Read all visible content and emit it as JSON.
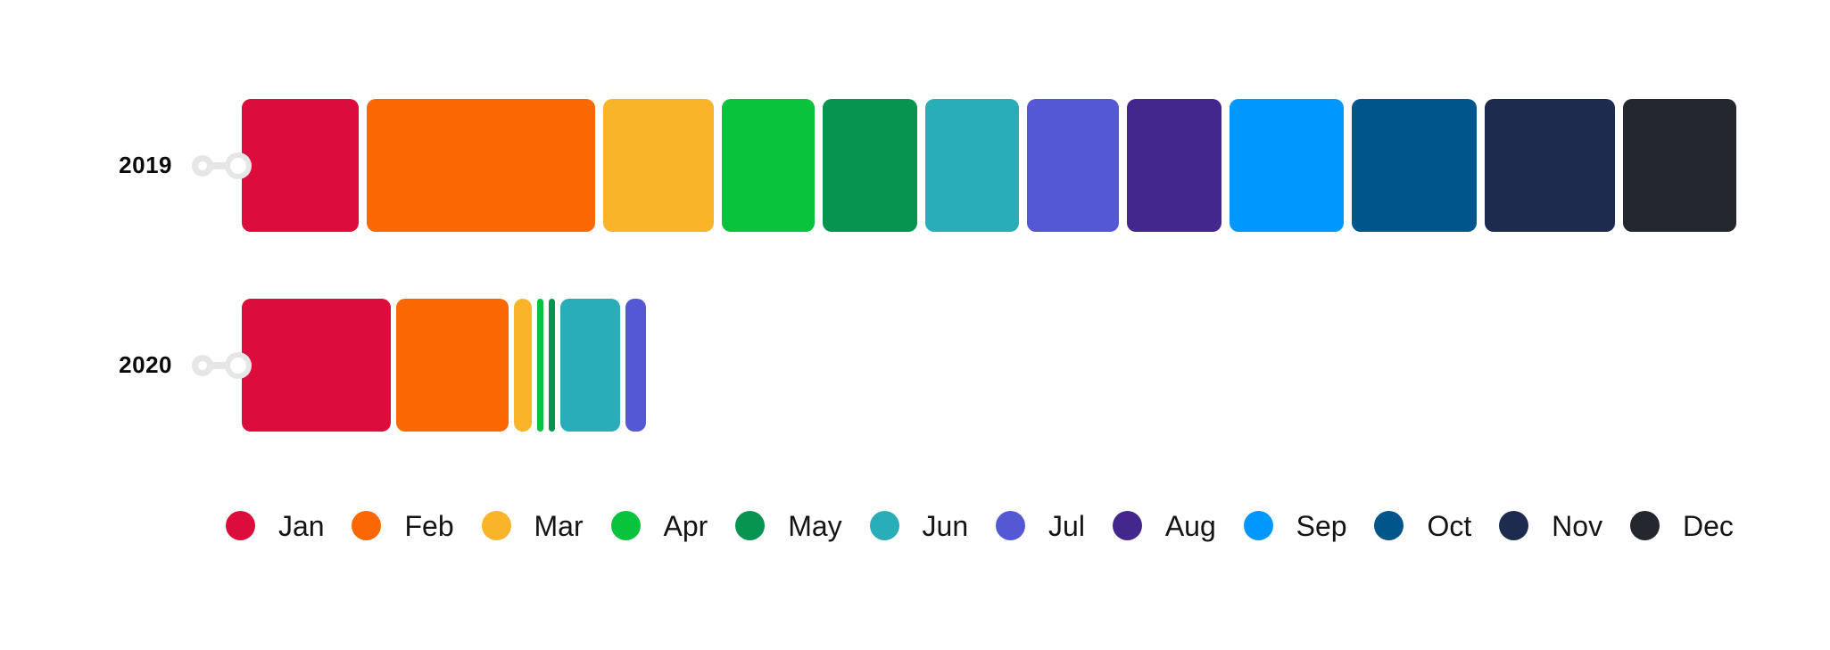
{
  "chart_data": {
    "type": "bar",
    "orientation": "horizontal",
    "stacked": true,
    "title": "",
    "categories": [
      "2019",
      "2020"
    ],
    "value_axis": {
      "visible": false,
      "unit": "relative length (estimated from bar widths in px, no axis shown)"
    },
    "series": [
      {
        "name": "Jan",
        "color": "#dc0d3d",
        "values": [
          131,
          167
        ]
      },
      {
        "name": "Feb",
        "color": "#fb6702",
        "values": [
          256,
          126
        ]
      },
      {
        "name": "Mar",
        "color": "#f9b42a",
        "values": [
          124,
          20
        ]
      },
      {
        "name": "Apr",
        "color": "#09c33c",
        "values": [
          104,
          7
        ]
      },
      {
        "name": "May",
        "color": "#079350",
        "values": [
          106,
          7
        ]
      },
      {
        "name": "Jun",
        "color": "#28adb9",
        "values": [
          105,
          67
        ]
      },
      {
        "name": "Jul",
        "color": "#5558d4",
        "values": [
          103,
          23
        ]
      },
      {
        "name": "Aug",
        "color": "#43278c",
        "values": [
          106,
          0
        ]
      },
      {
        "name": "Sep",
        "color": "#0098ff",
        "values": [
          128,
          0
        ]
      },
      {
        "name": "Oct",
        "color": "#00568a",
        "values": [
          140,
          0
        ]
      },
      {
        "name": "Nov",
        "color": "#1c2b4e",
        "values": [
          146,
          0
        ]
      },
      {
        "name": "Dec",
        "color": "#24282e",
        "values": [
          127,
          0
        ]
      }
    ],
    "legend": {
      "position": "bottom"
    }
  },
  "colors": {
    "background": "#ffffff",
    "axis_bullet_ring": "#e6e6e6",
    "row_label_text": "#0a0a0a",
    "legend_text": "#141414"
  }
}
